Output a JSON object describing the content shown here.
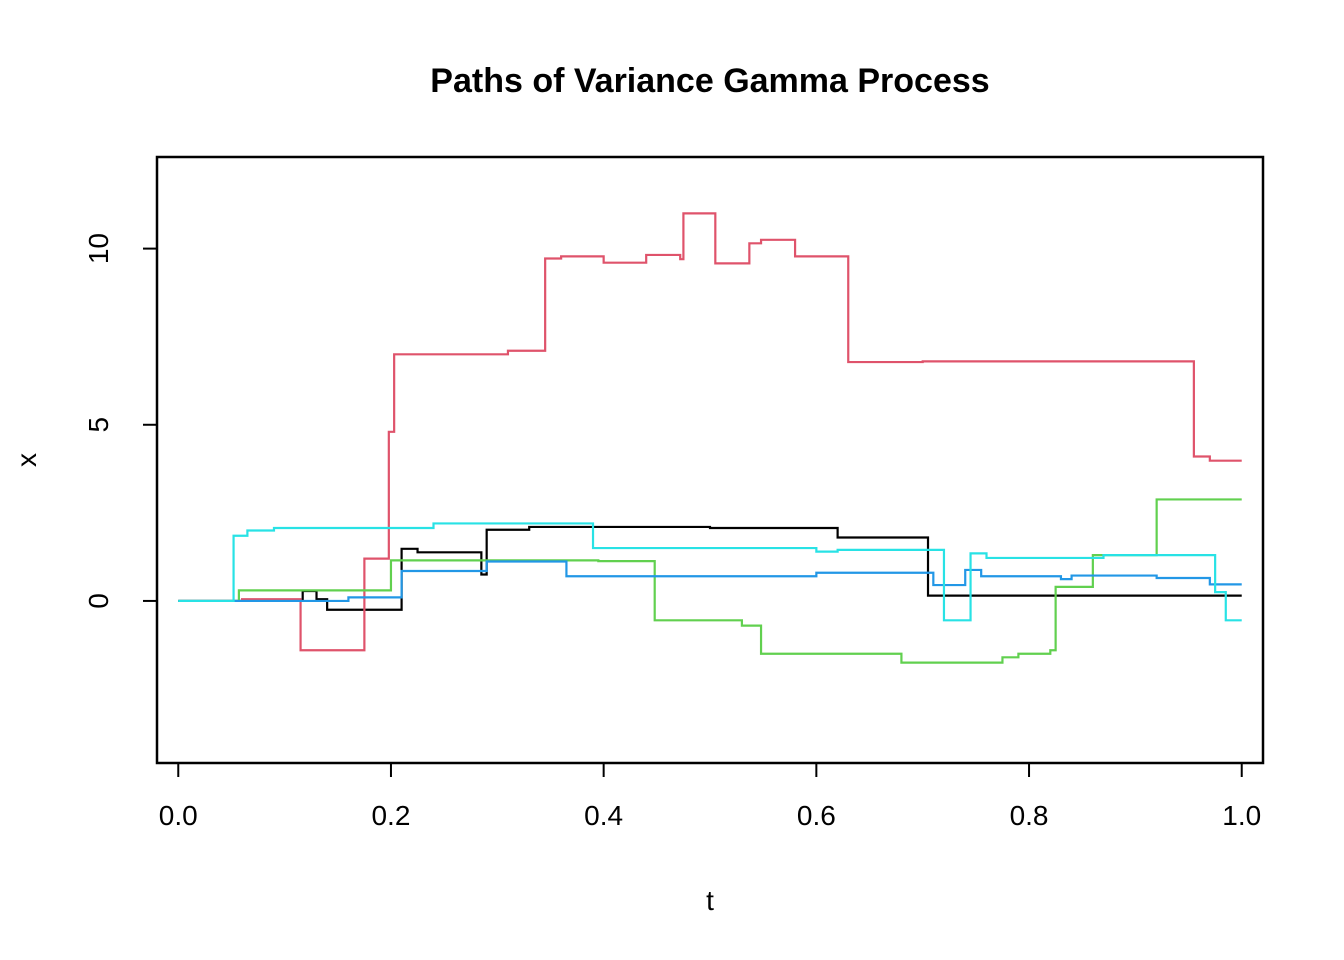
{
  "chart_data": {
    "type": "line",
    "step": true,
    "title": "Paths of Variance Gamma Process",
    "xlabel": "t",
    "ylabel": "x",
    "xlim": [
      -0.02,
      1.02
    ],
    "ylim": [
      -4.6,
      12.6
    ],
    "xticks": [
      0.0,
      0.2,
      0.4,
      0.6,
      0.8,
      1.0
    ],
    "xtick_labels": [
      "0.0",
      "0.2",
      "0.4",
      "0.6",
      "0.8",
      "1.0"
    ],
    "yticks": [
      0,
      5,
      10
    ],
    "ytick_labels": [
      "0",
      "5",
      "10"
    ],
    "grid": false,
    "legend": "none",
    "series": [
      {
        "color": "#000000",
        "points": [
          [
            0,
            0
          ],
          [
            0.117,
            0
          ],
          [
            0.117,
            0.28
          ],
          [
            0.13,
            0.28
          ],
          [
            0.13,
            0.05
          ],
          [
            0.14,
            0.05
          ],
          [
            0.14,
            -0.25
          ],
          [
            0.21,
            -0.25
          ],
          [
            0.21,
            1.48
          ],
          [
            0.225,
            1.48
          ],
          [
            0.225,
            1.38
          ],
          [
            0.285,
            1.38
          ],
          [
            0.285,
            0.75
          ],
          [
            0.29,
            0.75
          ],
          [
            0.29,
            2.02
          ],
          [
            0.33,
            2.02
          ],
          [
            0.33,
            2.1
          ],
          [
            0.5,
            2.1
          ],
          [
            0.5,
            2.07
          ],
          [
            0.62,
            2.07
          ],
          [
            0.62,
            1.8
          ],
          [
            0.705,
            1.8
          ],
          [
            0.705,
            0.15
          ],
          [
            1.0,
            0.15
          ]
        ]
      },
      {
        "color": "#DF536B",
        "points": [
          [
            0,
            0
          ],
          [
            0.06,
            0
          ],
          [
            0.06,
            0.05
          ],
          [
            0.115,
            0.05
          ],
          [
            0.115,
            -1.4
          ],
          [
            0.175,
            -1.4
          ],
          [
            0.175,
            1.2
          ],
          [
            0.198,
            1.2
          ],
          [
            0.198,
            4.8
          ],
          [
            0.203,
            4.8
          ],
          [
            0.203,
            7.0
          ],
          [
            0.31,
            7.0
          ],
          [
            0.31,
            7.1
          ],
          [
            0.345,
            7.1
          ],
          [
            0.345,
            9.72
          ],
          [
            0.36,
            9.72
          ],
          [
            0.36,
            9.78
          ],
          [
            0.4,
            9.78
          ],
          [
            0.4,
            9.6
          ],
          [
            0.44,
            9.6
          ],
          [
            0.44,
            9.82
          ],
          [
            0.472,
            9.82
          ],
          [
            0.472,
            9.7
          ],
          [
            0.475,
            9.7
          ],
          [
            0.475,
            11.0
          ],
          [
            0.505,
            11.0
          ],
          [
            0.505,
            9.58
          ],
          [
            0.537,
            9.58
          ],
          [
            0.537,
            10.15
          ],
          [
            0.548,
            10.15
          ],
          [
            0.548,
            10.25
          ],
          [
            0.58,
            10.25
          ],
          [
            0.58,
            9.78
          ],
          [
            0.63,
            9.78
          ],
          [
            0.63,
            6.78
          ],
          [
            0.7,
            6.78
          ],
          [
            0.7,
            6.8
          ],
          [
            0.955,
            6.8
          ],
          [
            0.955,
            4.1
          ],
          [
            0.97,
            4.1
          ],
          [
            0.97,
            3.98
          ],
          [
            1.0,
            3.98
          ]
        ]
      },
      {
        "color": "#61D04F",
        "points": [
          [
            0,
            0
          ],
          [
            0.057,
            0
          ],
          [
            0.057,
            0.3
          ],
          [
            0.2,
            0.3
          ],
          [
            0.2,
            1.15
          ],
          [
            0.395,
            1.15
          ],
          [
            0.395,
            1.13
          ],
          [
            0.448,
            1.13
          ],
          [
            0.448,
            -0.55
          ],
          [
            0.53,
            -0.55
          ],
          [
            0.53,
            -0.7
          ],
          [
            0.548,
            -0.7
          ],
          [
            0.548,
            -1.5
          ],
          [
            0.68,
            -1.5
          ],
          [
            0.68,
            -1.75
          ],
          [
            0.775,
            -1.75
          ],
          [
            0.775,
            -1.6
          ],
          [
            0.79,
            -1.6
          ],
          [
            0.79,
            -1.5
          ],
          [
            0.82,
            -1.5
          ],
          [
            0.82,
            -1.4
          ],
          [
            0.825,
            -1.4
          ],
          [
            0.825,
            0.4
          ],
          [
            0.86,
            0.4
          ],
          [
            0.86,
            1.3
          ],
          [
            0.92,
            1.3
          ],
          [
            0.92,
            2.88
          ],
          [
            1.0,
            2.88
          ]
        ]
      },
      {
        "color": "#2297E6",
        "points": [
          [
            0,
            0
          ],
          [
            0.16,
            0
          ],
          [
            0.16,
            0.1
          ],
          [
            0.21,
            0.1
          ],
          [
            0.21,
            0.85
          ],
          [
            0.29,
            0.85
          ],
          [
            0.29,
            1.12
          ],
          [
            0.365,
            1.12
          ],
          [
            0.365,
            0.7
          ],
          [
            0.6,
            0.7
          ],
          [
            0.6,
            0.8
          ],
          [
            0.71,
            0.8
          ],
          [
            0.71,
            0.45
          ],
          [
            0.74,
            0.45
          ],
          [
            0.74,
            0.88
          ],
          [
            0.755,
            0.88
          ],
          [
            0.755,
            0.7
          ],
          [
            0.83,
            0.7
          ],
          [
            0.83,
            0.62
          ],
          [
            0.84,
            0.62
          ],
          [
            0.84,
            0.72
          ],
          [
            0.92,
            0.72
          ],
          [
            0.92,
            0.65
          ],
          [
            0.97,
            0.65
          ],
          [
            0.97,
            0.47
          ],
          [
            1.0,
            0.47
          ]
        ]
      },
      {
        "color": "#28E2E5",
        "points": [
          [
            0,
            0
          ],
          [
            0.052,
            0
          ],
          [
            0.052,
            1.85
          ],
          [
            0.065,
            1.85
          ],
          [
            0.065,
            2.0
          ],
          [
            0.09,
            2.0
          ],
          [
            0.09,
            2.07
          ],
          [
            0.24,
            2.07
          ],
          [
            0.24,
            2.2
          ],
          [
            0.39,
            2.2
          ],
          [
            0.39,
            1.5
          ],
          [
            0.6,
            1.5
          ],
          [
            0.6,
            1.4
          ],
          [
            0.62,
            1.4
          ],
          [
            0.62,
            1.45
          ],
          [
            0.72,
            1.45
          ],
          [
            0.72,
            -0.55
          ],
          [
            0.745,
            -0.55
          ],
          [
            0.745,
            1.35
          ],
          [
            0.76,
            1.35
          ],
          [
            0.76,
            1.22
          ],
          [
            0.87,
            1.22
          ],
          [
            0.87,
            1.3
          ],
          [
            0.975,
            1.3
          ],
          [
            0.975,
            0.25
          ],
          [
            0.985,
            0.25
          ],
          [
            0.985,
            -0.55
          ],
          [
            1.0,
            -0.55
          ]
        ]
      }
    ]
  }
}
